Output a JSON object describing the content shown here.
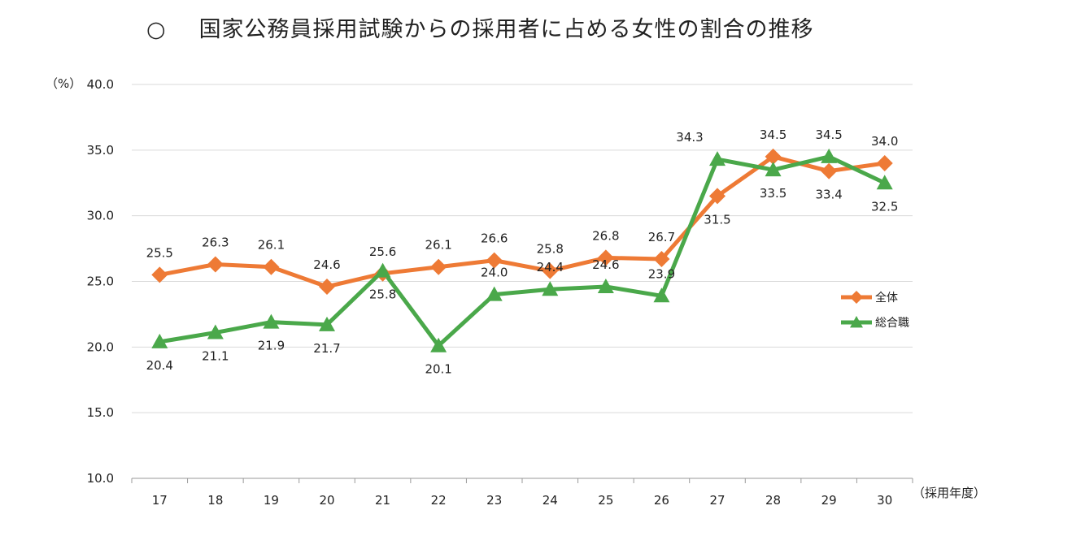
{
  "title": "国家公務員採用試験からの採用者に占める女性の割合の推移",
  "title_bullet": "○",
  "chart_data": {
    "type": "line",
    "title": "国家公務員採用試験からの採用者に占める女性の割合の推移",
    "ylabel": "（%）",
    "xlabel": "（採用年度）",
    "ylim": [
      10,
      40
    ],
    "yticks": [
      "10.0",
      "15.0",
      "20.0",
      "25.0",
      "30.0",
      "35.0",
      "40.0"
    ],
    "categories": [
      "17",
      "18",
      "19",
      "20",
      "21",
      "22",
      "23",
      "24",
      "25",
      "26",
      "27",
      "28",
      "29",
      "30"
    ],
    "grid": true,
    "legend": "right",
    "series": [
      {
        "name": "全体",
        "color": "#ee7a35",
        "marker": "diamond",
        "values": [
          25.5,
          26.3,
          26.1,
          24.6,
          25.6,
          26.1,
          26.6,
          25.8,
          26.8,
          26.7,
          31.5,
          34.5,
          33.4,
          34.0
        ],
        "labels": [
          "25.5",
          "26.3",
          "26.1",
          "24.6",
          "25.6",
          "26.1",
          "26.6",
          "25.8",
          "26.8",
          "26.7",
          "31.5",
          "34.5",
          "33.4",
          "34.0"
        ]
      },
      {
        "name": "総合職",
        "color": "#4aa84a",
        "marker": "triangle",
        "values": [
          20.4,
          21.1,
          21.9,
          21.7,
          25.8,
          20.1,
          24.0,
          24.4,
          24.6,
          23.9,
          34.3,
          33.5,
          34.5,
          32.5
        ],
        "labels": [
          "20.4",
          "21.1",
          "21.9",
          "21.7",
          "25.8",
          "20.1",
          "24.0",
          "24.4",
          "24.6",
          "23.9",
          "34.3",
          "33.5",
          "34.5",
          "32.5"
        ]
      }
    ]
  }
}
